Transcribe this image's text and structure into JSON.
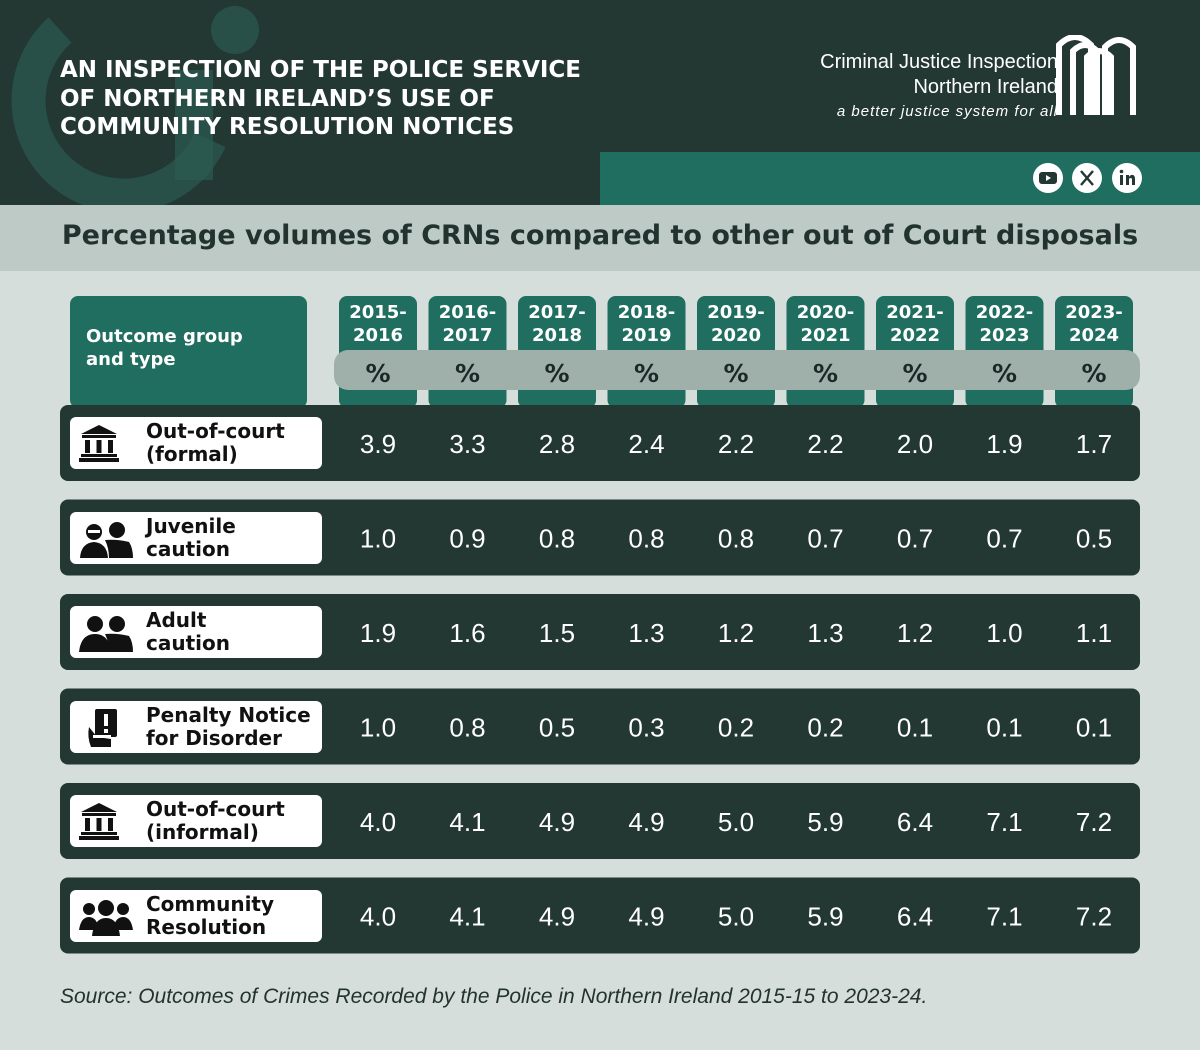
{
  "header": {
    "title_lines": [
      "AN INSPECTION OF THE POLICE SERVICE",
      "OF NORTHERN IRELAND’S USE OF",
      "COMMUNITY RESOLUTION NOTICES"
    ],
    "org_line1": "Criminal Justice Inspection",
    "org_line2": "Northern Ireland",
    "tagline": "a better justice system for all",
    "social_icons": [
      "youtube-icon",
      "x-icon",
      "linkedin-icon"
    ]
  },
  "chart_data": {
    "type": "table",
    "title": "Percentage volumes of CRNs compared to other out of Court disposals",
    "row_header": "Outcome group and type",
    "unit_label": "%",
    "columns": [
      [
        "2015-",
        "2016"
      ],
      [
        "2016-",
        "2017"
      ],
      [
        "2017-",
        "2018"
      ],
      [
        "2018-",
        "2019"
      ],
      [
        "2019-",
        "2020"
      ],
      [
        "2020-",
        "2021"
      ],
      [
        "2021-",
        "2022"
      ],
      [
        "2022-",
        "2023"
      ],
      [
        "2023-",
        "2024"
      ]
    ],
    "rows": [
      {
        "label": [
          "Out-of-court",
          "(formal)"
        ],
        "icon": "courthouse-icon",
        "values": [
          "3.9",
          "3.3",
          "2.8",
          "2.4",
          "2.2",
          "2.2",
          "2.0",
          "1.9",
          "1.7"
        ]
      },
      {
        "label": [
          "Juvenile",
          "caution"
        ],
        "icon": "juveniles-icon",
        "values": [
          "1.0",
          "0.9",
          "0.8",
          "0.8",
          "0.8",
          "0.7",
          "0.7",
          "0.7",
          "0.5"
        ]
      },
      {
        "label": [
          "Adult",
          "caution"
        ],
        "icon": "adults-icon",
        "values": [
          "1.9",
          "1.6",
          "1.5",
          "1.3",
          "1.2",
          "1.3",
          "1.2",
          "1.0",
          "1.1"
        ]
      },
      {
        "label": [
          "Penalty Notice",
          "for Disorder"
        ],
        "icon": "penalty-notice-icon",
        "values": [
          "1.0",
          "0.8",
          "0.5",
          "0.3",
          "0.2",
          "0.2",
          "0.1",
          "0.1",
          "0.1"
        ]
      },
      {
        "label": [
          "Out-of-court",
          "(informal)"
        ],
        "icon": "courthouse-icon",
        "values": [
          "4.0",
          "4.1",
          "4.9",
          "4.9",
          "5.0",
          "5.9",
          "6.4",
          "7.1",
          "7.2"
        ]
      },
      {
        "label": [
          "Community",
          "Resolution"
        ],
        "icon": "group-icon",
        "values": [
          "4.0",
          "4.1",
          "4.9",
          "4.9",
          "5.0",
          "5.9",
          "6.4",
          "7.1",
          "7.2"
        ]
      }
    ],
    "source": "Source: Outcomes of Crimes Recorded by the Police in Northern Ireland 2015-15 to 2023-24."
  },
  "colors": {
    "dark": "#233733",
    "teal": "#1f6e60",
    "light_band": "#bdcac6",
    "background": "#d6dedb",
    "pill": "#9fb0ab"
  }
}
